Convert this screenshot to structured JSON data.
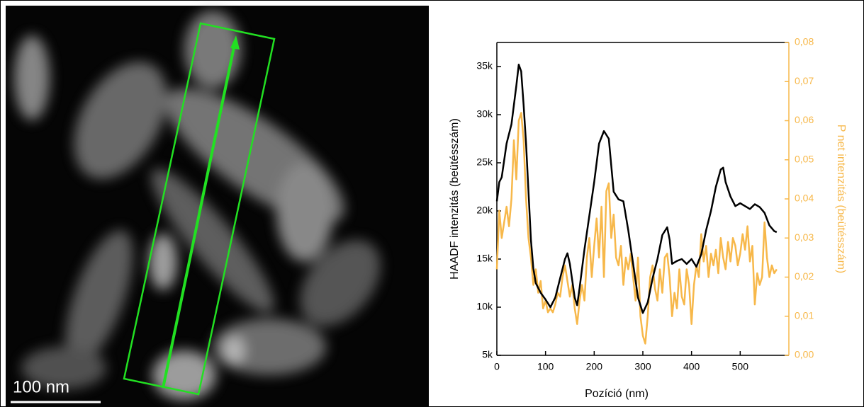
{
  "image": {
    "scale_bar": "100 nm"
  },
  "chart_data": {
    "type": "line",
    "xlabel": "Pozíció (nm)",
    "ylabel": "HAADF intenzitás (beütésszám)",
    "y2label": "P net intenzitás (beütésszám)",
    "xlim": [
      0,
      600
    ],
    "xticks": [
      0,
      100,
      200,
      300,
      400,
      500
    ],
    "ylim": [
      5000,
      37500
    ],
    "yticks": [
      {
        "value": 5000,
        "label": "5k"
      },
      {
        "value": 10000,
        "label": "10k"
      },
      {
        "value": 15000,
        "label": "15k"
      },
      {
        "value": 20000,
        "label": "20k"
      },
      {
        "value": 25000,
        "label": "25k"
      },
      {
        "value": 30000,
        "label": "30k"
      },
      {
        "value": 35000,
        "label": "35k"
      }
    ],
    "y2lim": [
      0,
      0.08
    ],
    "y2ticks": [
      {
        "value": 0,
        "label": "0,00"
      },
      {
        "value": 0.01,
        "label": "0,01"
      },
      {
        "value": 0.02,
        "label": "0,02"
      },
      {
        "value": 0.03,
        "label": "0,03"
      },
      {
        "value": 0.04,
        "label": "0,04"
      },
      {
        "value": 0.05,
        "label": "0,05"
      },
      {
        "value": 0.06,
        "label": "0,06"
      },
      {
        "value": 0.07,
        "label": "0,07"
      },
      {
        "value": 0.08,
        "label": "0,08"
      }
    ],
    "y2color": "#f7b84a",
    "series": [
      {
        "color": "#000000",
        "axis": "y",
        "x": [
          0,
          5,
          10,
          20,
          30,
          40,
          45,
          50,
          55,
          60,
          65,
          70,
          75,
          80,
          90,
          100,
          110,
          120,
          130,
          140,
          145,
          150,
          160,
          165,
          170,
          180,
          190,
          200,
          210,
          220,
          230,
          240,
          250,
          260,
          270,
          280,
          290,
          300,
          310,
          320,
          330,
          340,
          350,
          355,
          360,
          370,
          380,
          390,
          400,
          410,
          420,
          430,
          440,
          450,
          460,
          465,
          470,
          480,
          490,
          500,
          510,
          520,
          530,
          540,
          550,
          560,
          570,
          575
        ],
        "values": [
          21000,
          23000,
          23500,
          27000,
          29000,
          33000,
          35200,
          34500,
          31000,
          27000,
          22000,
          17000,
          14000,
          12500,
          11500,
          10800,
          10000,
          11000,
          13000,
          15000,
          15600,
          14500,
          11000,
          10200,
          12000,
          16000,
          19500,
          23000,
          27000,
          28300,
          27500,
          22000,
          21200,
          21000,
          18000,
          14500,
          11000,
          9400,
          10500,
          13000,
          15000,
          17500,
          18300,
          17000,
          14500,
          14800,
          15000,
          14500,
          15000,
          14200,
          15500,
          18000,
          20000,
          22500,
          24300,
          24500,
          23000,
          21500,
          20500,
          20800,
          20500,
          20200,
          20700,
          20400,
          19800,
          18500,
          17900,
          17800
        ]
      },
      {
        "color": "#f7b84a",
        "axis": "y2",
        "x": [
          0,
          5,
          10,
          15,
          20,
          25,
          30,
          35,
          40,
          45,
          50,
          55,
          60,
          65,
          70,
          75,
          80,
          85,
          90,
          95,
          100,
          105,
          110,
          115,
          120,
          125,
          130,
          135,
          140,
          145,
          150,
          155,
          160,
          165,
          170,
          175,
          180,
          185,
          190,
          195,
          200,
          205,
          210,
          215,
          220,
          225,
          230,
          235,
          240,
          245,
          250,
          255,
          260,
          265,
          270,
          275,
          280,
          285,
          290,
          295,
          300,
          305,
          310,
          315,
          320,
          325,
          330,
          335,
          340,
          345,
          350,
          355,
          360,
          365,
          370,
          375,
          380,
          385,
          390,
          395,
          400,
          405,
          410,
          415,
          420,
          425,
          430,
          435,
          440,
          445,
          450,
          455,
          460,
          465,
          470,
          475,
          480,
          485,
          490,
          495,
          500,
          505,
          510,
          515,
          520,
          525,
          530,
          535,
          540,
          545,
          550,
          555,
          560,
          565,
          570,
          575
        ],
        "values": [
          0.022,
          0.037,
          0.03,
          0.034,
          0.038,
          0.033,
          0.04,
          0.055,
          0.045,
          0.06,
          0.062,
          0.055,
          0.04,
          0.03,
          0.025,
          0.018,
          0.022,
          0.016,
          0.019,
          0.012,
          0.014,
          0.011,
          0.012,
          0.011,
          0.013,
          0.016,
          0.015,
          0.02,
          0.023,
          0.019,
          0.015,
          0.018,
          0.012,
          0.008,
          0.014,
          0.018,
          0.014,
          0.025,
          0.03,
          0.02,
          0.028,
          0.035,
          0.025,
          0.038,
          0.02,
          0.042,
          0.044,
          0.03,
          0.036,
          0.025,
          0.023,
          0.028,
          0.018,
          0.025,
          0.022,
          0.026,
          0.02,
          0.014,
          0.025,
          0.01,
          0.005,
          0.003,
          0.01,
          0.02,
          0.023,
          0.017,
          0.014,
          0.022,
          0.016,
          0.025,
          0.026,
          0.02,
          0.01,
          0.016,
          0.012,
          0.022,
          0.015,
          0.013,
          0.022,
          0.018,
          0.008,
          0.018,
          0.023,
          0.02,
          0.031,
          0.024,
          0.028,
          0.02,
          0.026,
          0.023,
          0.027,
          0.021,
          0.03,
          0.025,
          0.022,
          0.029,
          0.024,
          0.03,
          0.028,
          0.023,
          0.026,
          0.031,
          0.027,
          0.033,
          0.024,
          0.028,
          0.013,
          0.021,
          0.018,
          0.02,
          0.034,
          0.025,
          0.02,
          0.023,
          0.021,
          0.022
        ]
      }
    ]
  }
}
